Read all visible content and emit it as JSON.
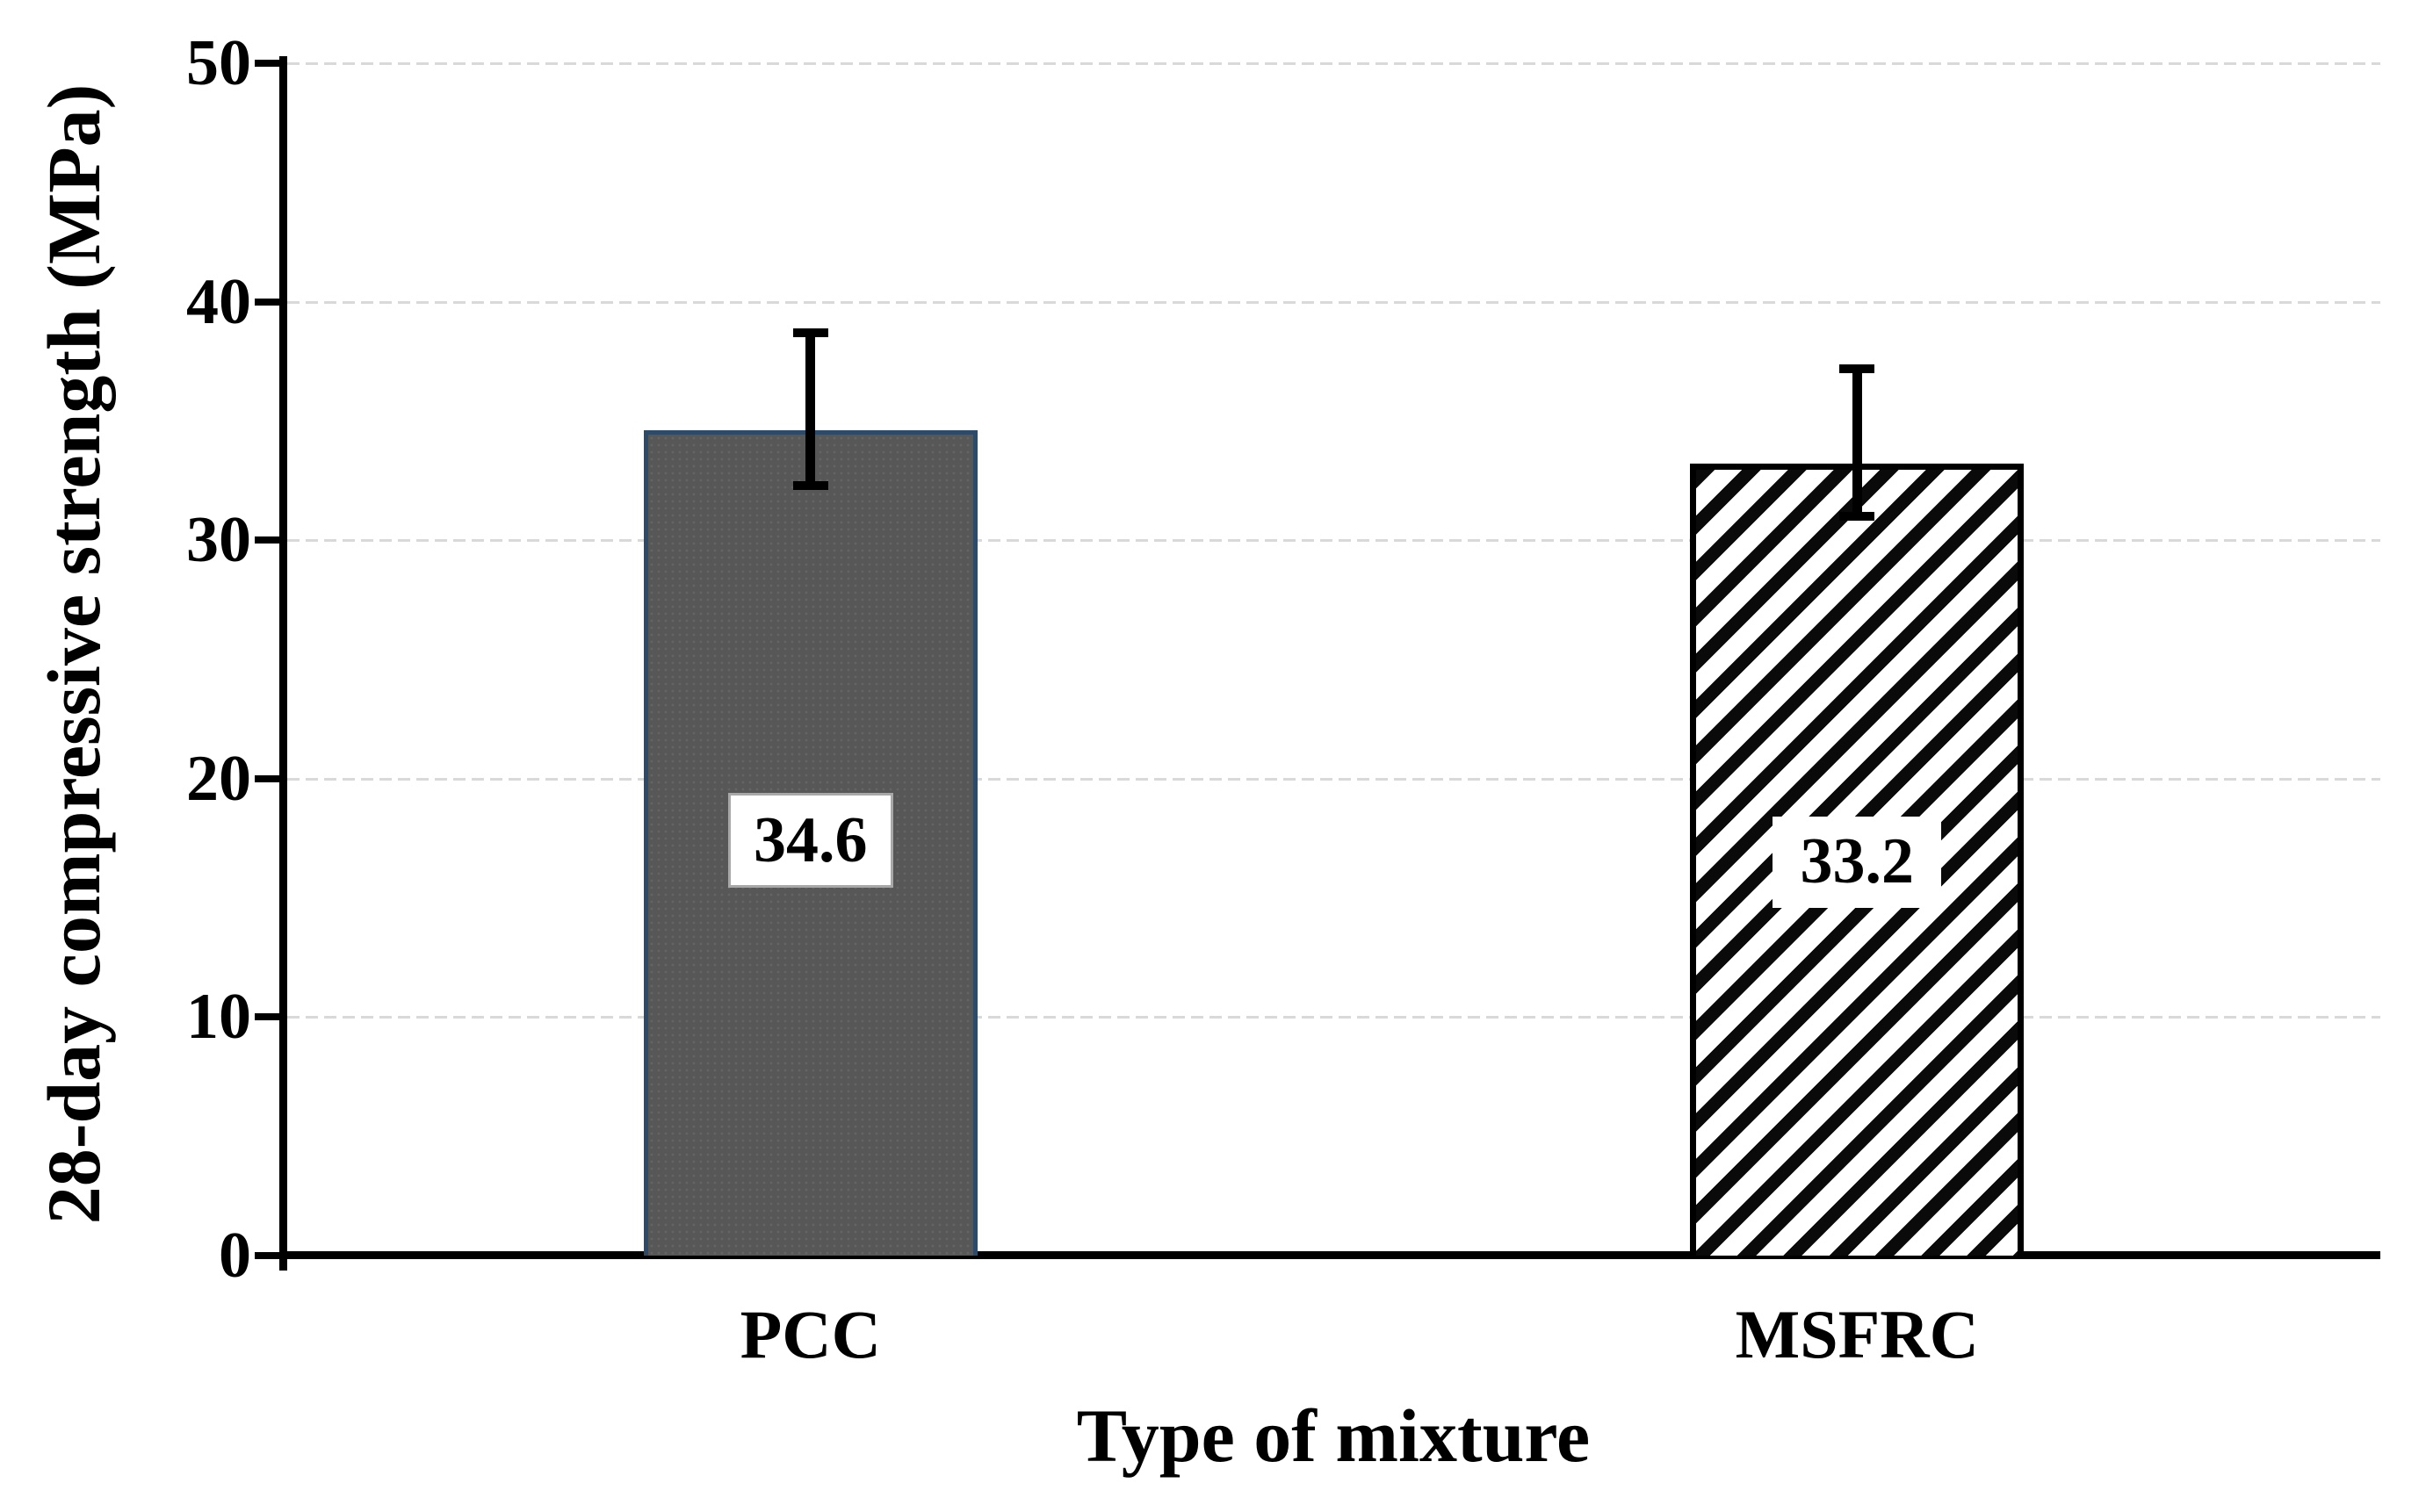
{
  "chart_data": {
    "type": "bar",
    "title": "",
    "xlabel": "Type of mixture",
    "ylabel": "28-day compressive strength (MPa)",
    "categories": [
      "PCC",
      "MSFRC"
    ],
    "values": [
      34.6,
      33.2
    ],
    "data_labels": [
      "34.6",
      "33.2"
    ],
    "error_bars": [
      {
        "upper": 38.7,
        "lower": 32.3
      },
      {
        "upper": 37.2,
        "lower": 31.0
      }
    ],
    "ylim": [
      0,
      50
    ],
    "yticks": [
      0,
      10,
      20,
      30,
      40,
      50
    ],
    "grid": "horizontal-light-dashed",
    "legend": "none",
    "bar_styles": [
      {
        "name": "solid-dark-gray",
        "fill": "#575757",
        "border": "#2e4a69",
        "pattern": "solid"
      },
      {
        "name": "diagonal-hatch",
        "fill": "#ffffff",
        "border": "#000000",
        "pattern": "diagonal-stripes"
      }
    ]
  },
  "colors": {
    "background": "#ffffff",
    "gridline": "#d9d9d9",
    "axis": "#000000",
    "text": "#000000",
    "label_box_bg": "#ffffff",
    "label_box_border": "#a8a8a8"
  }
}
